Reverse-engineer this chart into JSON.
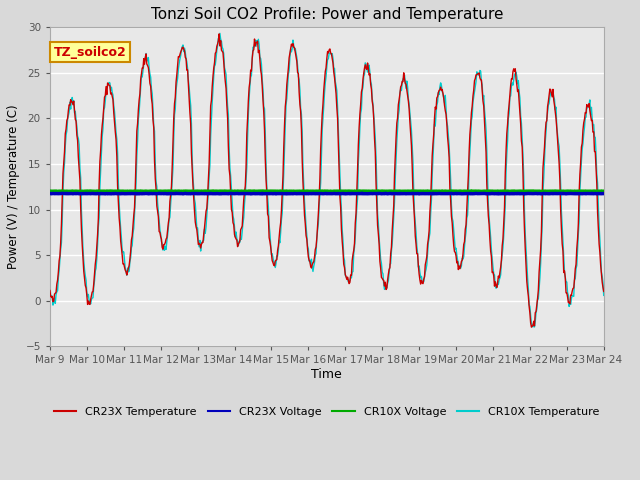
{
  "title": "Tonzi Soil CO2 Profile: Power and Temperature",
  "xlabel": "Time",
  "ylabel": "Power (V) / Temperature (C)",
  "ylim": [
    -5,
    30
  ],
  "yticks": [
    -5,
    0,
    5,
    10,
    15,
    20,
    25,
    30
  ],
  "background_color": "#d9d9d9",
  "plot_bg_color": "#e8e8e8",
  "grid_color": "#ffffff",
  "cr23x_temp_color": "#cc0000",
  "cr23x_volt_color": "#0000bb",
  "cr10x_volt_color": "#00aa00",
  "cr10x_temp_color": "#00cccc",
  "volt_value": 11.75,
  "cr10x_volt_value": 12.05,
  "annotation_text": "TZ_soilco2",
  "annotation_bg": "#ffff99",
  "annotation_border": "#cc8800",
  "x_start_day": 9,
  "x_end_day": 24,
  "x_tick_days": [
    9,
    10,
    11,
    12,
    13,
    14,
    15,
    16,
    17,
    18,
    19,
    20,
    21,
    22,
    23,
    24
  ],
  "x_tick_labels": [
    "Mar 9",
    "Mar 10",
    "Mar 11",
    "Mar 12",
    "Mar 13",
    "Mar 14",
    "Mar 15",
    "Mar 16",
    "Mar 17",
    "Mar 18",
    "Mar 19",
    "Mar 20",
    "Mar 21",
    "Mar 22",
    "Mar 23",
    "Mar 24"
  ],
  "legend_entries": [
    "CR23X Temperature",
    "CR23X Voltage",
    "CR10X Voltage",
    "CR10X Temperature"
  ],
  "legend_colors": [
    "#cc0000",
    "#0000bb",
    "#00aa00",
    "#00cccc"
  ],
  "peak_values": [
    22,
    22,
    25,
    27.5,
    28,
    29,
    28,
    28,
    27,
    25,
    24,
    23,
    26.5,
    24,
    22,
    21
  ],
  "trough_values": [
    0,
    -0.5,
    3,
    6,
    6,
    6.5,
    4,
    4,
    2,
    1.5,
    2,
    4,
    2,
    -3,
    0,
    0
  ],
  "peak_phase": 0.65,
  "figsize": [
    6.4,
    4.8
  ],
  "dpi": 100
}
